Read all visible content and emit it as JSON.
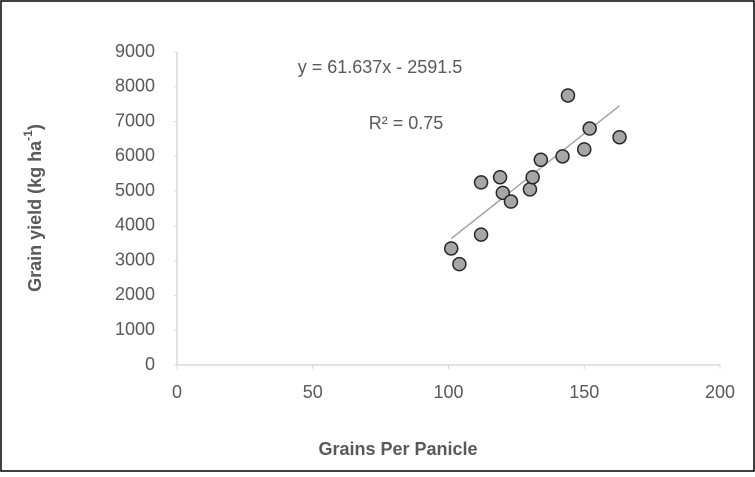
{
  "chart_data": {
    "type": "scatter",
    "x_label": "Grains Per Panicle",
    "y_label": [
      "Grain yield (kg ha",
      "-1",
      ")"
    ],
    "annotations": [
      "y = 61.637x - 2591.5",
      "R² = 0.75"
    ],
    "x": [
      101,
      104,
      112,
      112,
      119,
      120,
      123,
      130,
      131,
      134,
      142,
      144,
      150,
      152,
      163
    ],
    "series": [
      {
        "name": "Grain yield",
        "color": "#a6a6a6",
        "values": [
          3350,
          2900,
          3750,
          5250,
          5400,
          4950,
          4700,
          5050,
          5400,
          5900,
          6000,
          7750,
          6200,
          6800,
          6550
        ]
      }
    ],
    "trendline": {
      "x": [
        101,
        163
      ],
      "y": [
        3634,
        7455
      ],
      "color": "#a6a6a6"
    },
    "xlim": [
      0,
      200
    ],
    "xticks": [
      0,
      50,
      100,
      150,
      200
    ],
    "ylim": [
      0,
      9000
    ],
    "yticks": [
      0,
      1000,
      2000,
      3000,
      4000,
      5000,
      6000,
      7000,
      8000,
      9000
    ]
  }
}
